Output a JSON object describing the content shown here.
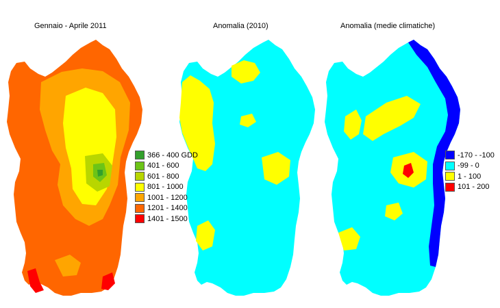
{
  "panels": [
    {
      "title": "Gennaio - Aprile 2011"
    },
    {
      "title": "Anomalia (2010)"
    },
    {
      "title": "Anomalia (medie climatiche)"
    }
  ],
  "legend_gdd": [
    {
      "label": "366 - 400 GDD",
      "color": "#33a02c"
    },
    {
      "label": "401 - 600",
      "color": "#6cc417"
    },
    {
      "label": "601 - 800",
      "color": "#b8d600"
    },
    {
      "label": "801 - 1000",
      "color": "#ffff00"
    },
    {
      "label": "1001 - 1200",
      "color": "#ffa500"
    },
    {
      "label": "1201 - 1400",
      "color": "#ff6600"
    },
    {
      "label": "1401 - 1500",
      "color": "#ff0000"
    }
  ],
  "legend_anomaly": [
    {
      "label": "-170 - -100",
      "color": "#0000ff"
    },
    {
      "label": "-99 - 0",
      "color": "#00ffff"
    },
    {
      "label": "1 - 100",
      "color": "#ffff00"
    },
    {
      "label": "101 - 200",
      "color": "#ff0000"
    }
  ]
}
